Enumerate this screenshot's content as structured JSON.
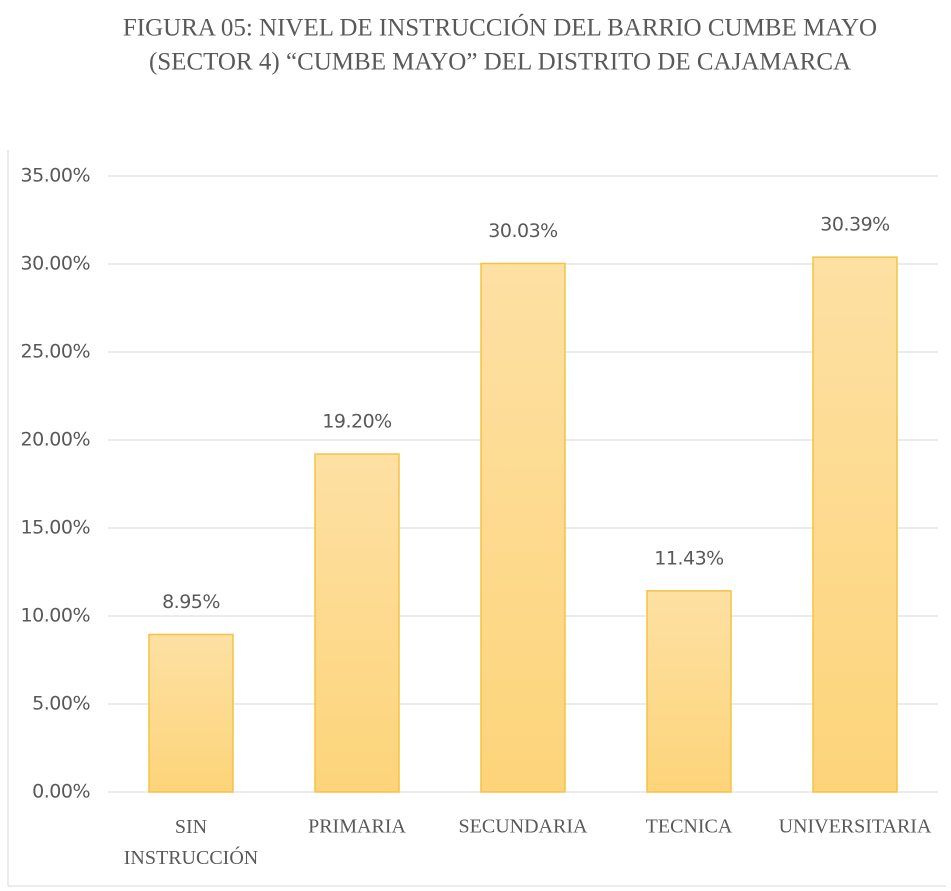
{
  "chart_data": {
    "type": "bar",
    "title": [
      "FIGURA 05: NIVEL DE INSTRUCCIÓN DEL BARRIO CUMBE MAYO",
      "(SECTOR 4) “CUMBE MAYO” DEL DISTRITO DE CAJAMARCA"
    ],
    "categories": [
      "SIN INSTRUCCIÓN",
      "PRIMARIA",
      "SECUNDARIA",
      "TECNICA",
      "UNIVERSITARIA"
    ],
    "values": [
      8.95,
      19.2,
      30.03,
      11.43,
      30.39
    ],
    "value_labels": [
      "8.95%",
      "19.20%",
      "30.03%",
      "11.43%",
      "30.39%"
    ],
    "color": "#fdd88a",
    "ylim": [
      0,
      35
    ],
    "yticks": [
      {
        "value": 0,
        "label": "0.00%"
      },
      {
        "value": 5,
        "label": "5.00%"
      },
      {
        "value": 10,
        "label": "10.00%"
      },
      {
        "value": 15,
        "label": "15.00%"
      },
      {
        "value": 20,
        "label": "20.00%"
      },
      {
        "value": 25,
        "label": "25.00%"
      },
      {
        "value": 30,
        "label": "30.00%"
      },
      {
        "value": 35,
        "label": "35.00%"
      }
    ],
    "grid": true
  }
}
